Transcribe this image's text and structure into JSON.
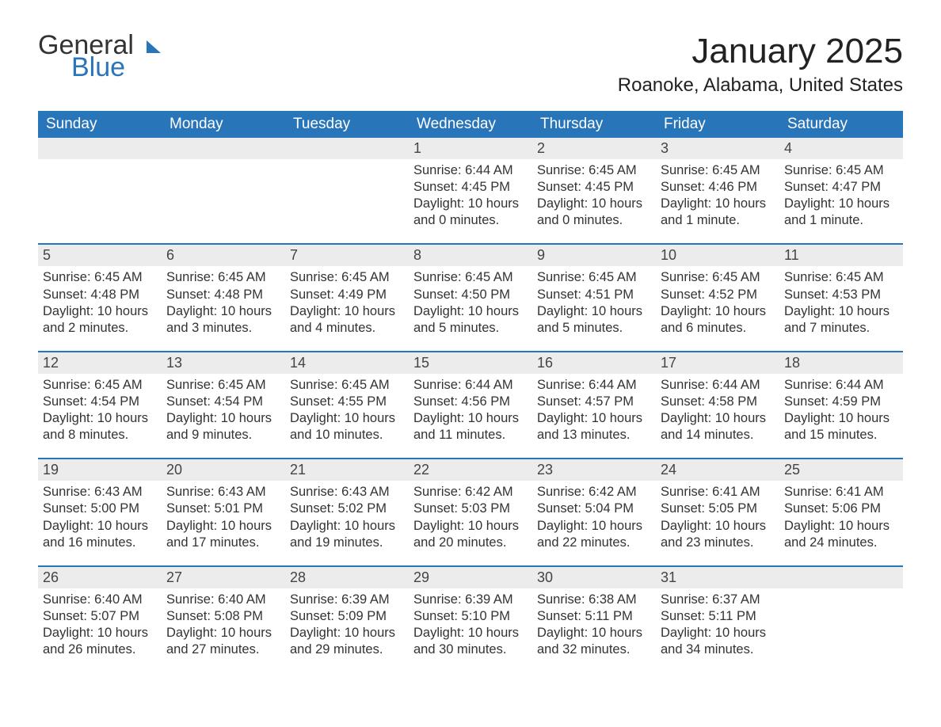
{
  "logo": {
    "text1": "General",
    "text2": "Blue",
    "shape_color": "#2975b9"
  },
  "title": "January 2025",
  "location": "Roanoke, Alabama, United States",
  "colors": {
    "header_bg": "#2975b9",
    "header_text": "#ffffff",
    "daynum_bg": "#ececec",
    "border": "#2975b9",
    "body_text": "#333333",
    "page_bg": "#ffffff"
  },
  "typography": {
    "month_title_fontsize": 44,
    "location_fontsize": 24,
    "dayhead_fontsize": 19,
    "daynum_fontsize": 18,
    "cell_fontsize": 16.5,
    "logo_fontsize": 34
  },
  "day_headers": [
    "Sunday",
    "Monday",
    "Tuesday",
    "Wednesday",
    "Thursday",
    "Friday",
    "Saturday"
  ],
  "weeks": [
    [
      {
        "num": "",
        "lines": []
      },
      {
        "num": "",
        "lines": []
      },
      {
        "num": "",
        "lines": []
      },
      {
        "num": "1",
        "lines": [
          "Sunrise: 6:44 AM",
          "Sunset: 4:45 PM",
          "Daylight: 10 hours and 0 minutes."
        ]
      },
      {
        "num": "2",
        "lines": [
          "Sunrise: 6:45 AM",
          "Sunset: 4:45 PM",
          "Daylight: 10 hours and 0 minutes."
        ]
      },
      {
        "num": "3",
        "lines": [
          "Sunrise: 6:45 AM",
          "Sunset: 4:46 PM",
          "Daylight: 10 hours and 1 minute."
        ]
      },
      {
        "num": "4",
        "lines": [
          "Sunrise: 6:45 AM",
          "Sunset: 4:47 PM",
          "Daylight: 10 hours and 1 minute."
        ]
      }
    ],
    [
      {
        "num": "5",
        "lines": [
          "Sunrise: 6:45 AM",
          "Sunset: 4:48 PM",
          "Daylight: 10 hours and 2 minutes."
        ]
      },
      {
        "num": "6",
        "lines": [
          "Sunrise: 6:45 AM",
          "Sunset: 4:48 PM",
          "Daylight: 10 hours and 3 minutes."
        ]
      },
      {
        "num": "7",
        "lines": [
          "Sunrise: 6:45 AM",
          "Sunset: 4:49 PM",
          "Daylight: 10 hours and 4 minutes."
        ]
      },
      {
        "num": "8",
        "lines": [
          "Sunrise: 6:45 AM",
          "Sunset: 4:50 PM",
          "Daylight: 10 hours and 5 minutes."
        ]
      },
      {
        "num": "9",
        "lines": [
          "Sunrise: 6:45 AM",
          "Sunset: 4:51 PM",
          "Daylight: 10 hours and 5 minutes."
        ]
      },
      {
        "num": "10",
        "lines": [
          "Sunrise: 6:45 AM",
          "Sunset: 4:52 PM",
          "Daylight: 10 hours and 6 minutes."
        ]
      },
      {
        "num": "11",
        "lines": [
          "Sunrise: 6:45 AM",
          "Sunset: 4:53 PM",
          "Daylight: 10 hours and 7 minutes."
        ]
      }
    ],
    [
      {
        "num": "12",
        "lines": [
          "Sunrise: 6:45 AM",
          "Sunset: 4:54 PM",
          "Daylight: 10 hours and 8 minutes."
        ]
      },
      {
        "num": "13",
        "lines": [
          "Sunrise: 6:45 AM",
          "Sunset: 4:54 PM",
          "Daylight: 10 hours and 9 minutes."
        ]
      },
      {
        "num": "14",
        "lines": [
          "Sunrise: 6:45 AM",
          "Sunset: 4:55 PM",
          "Daylight: 10 hours and 10 minutes."
        ]
      },
      {
        "num": "15",
        "lines": [
          "Sunrise: 6:44 AM",
          "Sunset: 4:56 PM",
          "Daylight: 10 hours and 11 minutes."
        ]
      },
      {
        "num": "16",
        "lines": [
          "Sunrise: 6:44 AM",
          "Sunset: 4:57 PM",
          "Daylight: 10 hours and 13 minutes."
        ]
      },
      {
        "num": "17",
        "lines": [
          "Sunrise: 6:44 AM",
          "Sunset: 4:58 PM",
          "Daylight: 10 hours and 14 minutes."
        ]
      },
      {
        "num": "18",
        "lines": [
          "Sunrise: 6:44 AM",
          "Sunset: 4:59 PM",
          "Daylight: 10 hours and 15 minutes."
        ]
      }
    ],
    [
      {
        "num": "19",
        "lines": [
          "Sunrise: 6:43 AM",
          "Sunset: 5:00 PM",
          "Daylight: 10 hours and 16 minutes."
        ]
      },
      {
        "num": "20",
        "lines": [
          "Sunrise: 6:43 AM",
          "Sunset: 5:01 PM",
          "Daylight: 10 hours and 17 minutes."
        ]
      },
      {
        "num": "21",
        "lines": [
          "Sunrise: 6:43 AM",
          "Sunset: 5:02 PM",
          "Daylight: 10 hours and 19 minutes."
        ]
      },
      {
        "num": "22",
        "lines": [
          "Sunrise: 6:42 AM",
          "Sunset: 5:03 PM",
          "Daylight: 10 hours and 20 minutes."
        ]
      },
      {
        "num": "23",
        "lines": [
          "Sunrise: 6:42 AM",
          "Sunset: 5:04 PM",
          "Daylight: 10 hours and 22 minutes."
        ]
      },
      {
        "num": "24",
        "lines": [
          "Sunrise: 6:41 AM",
          "Sunset: 5:05 PM",
          "Daylight: 10 hours and 23 minutes."
        ]
      },
      {
        "num": "25",
        "lines": [
          "Sunrise: 6:41 AM",
          "Sunset: 5:06 PM",
          "Daylight: 10 hours and 24 minutes."
        ]
      }
    ],
    [
      {
        "num": "26",
        "lines": [
          "Sunrise: 6:40 AM",
          "Sunset: 5:07 PM",
          "Daylight: 10 hours and 26 minutes."
        ]
      },
      {
        "num": "27",
        "lines": [
          "Sunrise: 6:40 AM",
          "Sunset: 5:08 PM",
          "Daylight: 10 hours and 27 minutes."
        ]
      },
      {
        "num": "28",
        "lines": [
          "Sunrise: 6:39 AM",
          "Sunset: 5:09 PM",
          "Daylight: 10 hours and 29 minutes."
        ]
      },
      {
        "num": "29",
        "lines": [
          "Sunrise: 6:39 AM",
          "Sunset: 5:10 PM",
          "Daylight: 10 hours and 30 minutes."
        ]
      },
      {
        "num": "30",
        "lines": [
          "Sunrise: 6:38 AM",
          "Sunset: 5:11 PM",
          "Daylight: 10 hours and 32 minutes."
        ]
      },
      {
        "num": "31",
        "lines": [
          "Sunrise: 6:37 AM",
          "Sunset: 5:11 PM",
          "Daylight: 10 hours and 34 minutes."
        ]
      },
      {
        "num": "",
        "lines": []
      }
    ]
  ]
}
